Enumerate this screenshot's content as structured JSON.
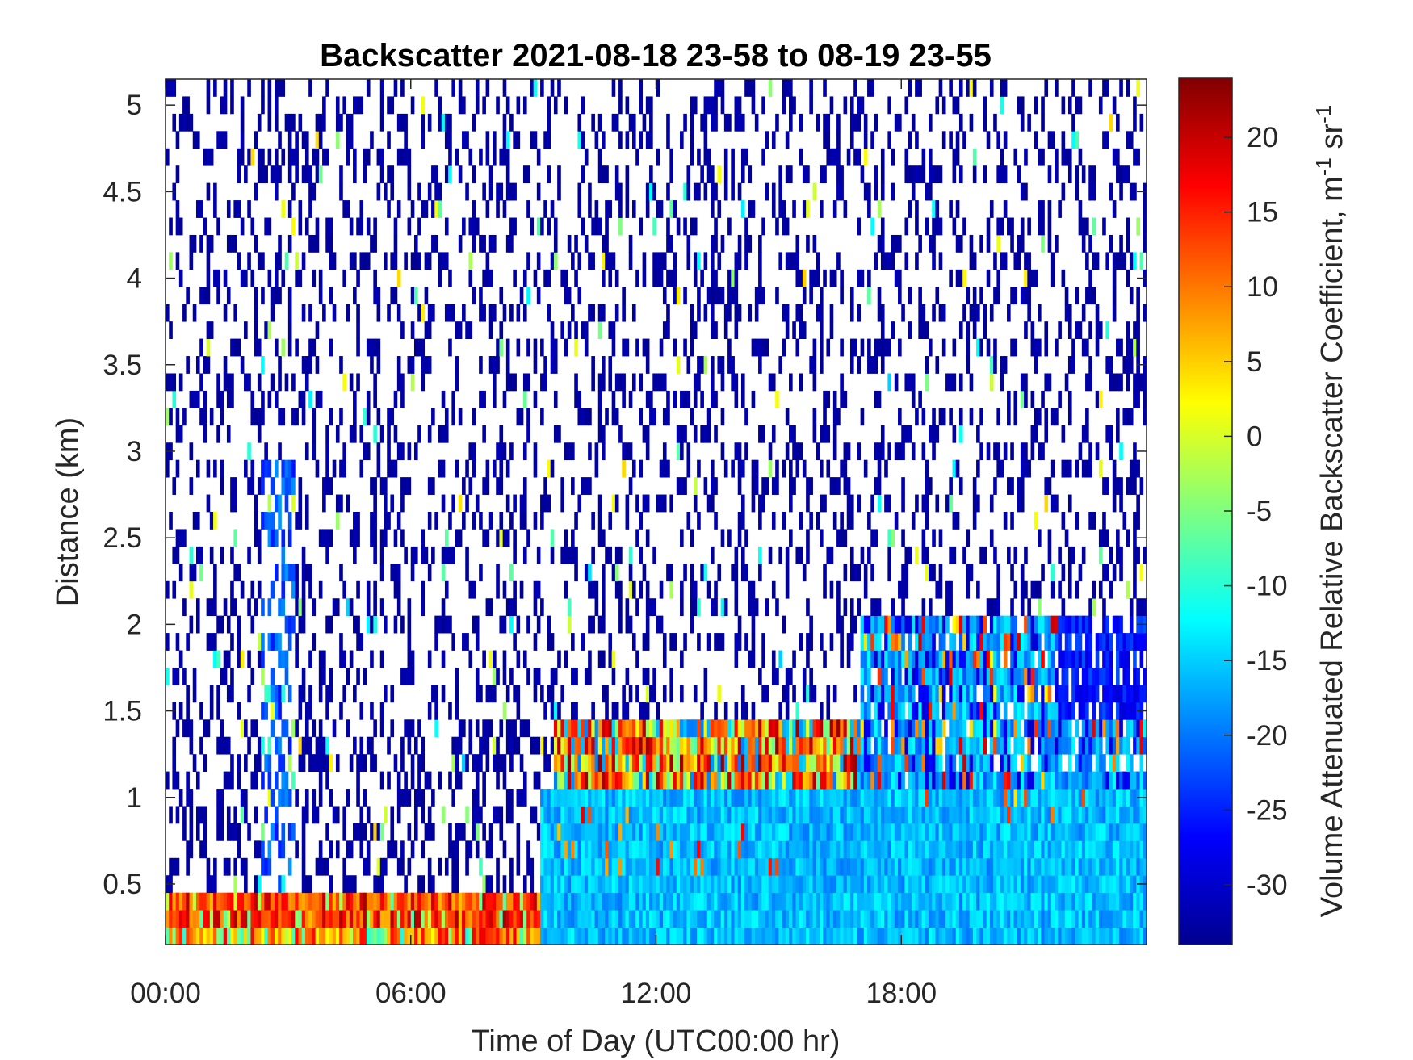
{
  "chart_data": {
    "type": "heatmap",
    "title": "Backscatter 2021-08-18 23-58 to 08-19 23-55",
    "xlabel": "Time of Day (UTC00:00 hr)",
    "ylabel": "Distance (km)",
    "xlim": [
      0,
      24
    ],
    "ylim": [
      0.15,
      5.15
    ],
    "x_ticks": [
      {
        "value": 0,
        "label": "00:00"
      },
      {
        "value": 6,
        "label": "06:00"
      },
      {
        "value": 12,
        "label": "12:00"
      },
      {
        "value": 18,
        "label": "18:00"
      }
    ],
    "y_ticks": [
      {
        "value": 0.5,
        "label": "0.5"
      },
      {
        "value": 1,
        "label": "1"
      },
      {
        "value": 1.5,
        "label": "1.5"
      },
      {
        "value": 2,
        "label": "2"
      },
      {
        "value": 2.5,
        "label": "2.5"
      },
      {
        "value": 3,
        "label": "3"
      },
      {
        "value": 3.5,
        "label": "3.5"
      },
      {
        "value": 4,
        "label": "4"
      },
      {
        "value": 4.5,
        "label": "4.5"
      },
      {
        "value": 5,
        "label": "5"
      }
    ],
    "colorbar": {
      "label": "Volume Attenuated Relative Backscatter Coefficient, m",
      "label_sup1": "-1",
      "label_mid": " sr",
      "label_sup2": "-1",
      "range": [
        -34,
        24
      ],
      "colormap": "jet",
      "ticks": [
        {
          "value": 20,
          "label": "20"
        },
        {
          "value": 15,
          "label": "15"
        },
        {
          "value": 10,
          "label": "10"
        },
        {
          "value": 5,
          "label": "5"
        },
        {
          "value": 0,
          "label": "0"
        },
        {
          "value": -5,
          "label": "-5"
        },
        {
          "value": -10,
          "label": "-10"
        },
        {
          "value": -15,
          "label": "-15"
        },
        {
          "value": -20,
          "label": "-20"
        },
        {
          "value": -25,
          "label": "-25"
        },
        {
          "value": -30,
          "label": "-30"
        }
      ]
    },
    "grid": false,
    "description_of_regions": [
      {
        "x": [
          0,
          9.2
        ],
        "y": [
          0.15,
          0.45
        ],
        "value_range": [
          5,
          22
        ]
      },
      {
        "x": [
          9.2,
          24
        ],
        "y": [
          0.15,
          1.1
        ],
        "value_range": [
          -20,
          -12
        ]
      },
      {
        "x": [
          9.5,
          17
        ],
        "y": [
          1.1,
          1.4
        ],
        "value_range": [
          -5,
          22
        ]
      },
      {
        "x": [
          17,
          24
        ],
        "y": [
          0.9,
          2.0
        ],
        "value_range": [
          -22,
          10
        ]
      },
      {
        "x": [
          0,
          24
        ],
        "y": [
          1.5,
          5.15
        ],
        "value_range": [
          -33,
          -30
        ]
      }
    ]
  }
}
